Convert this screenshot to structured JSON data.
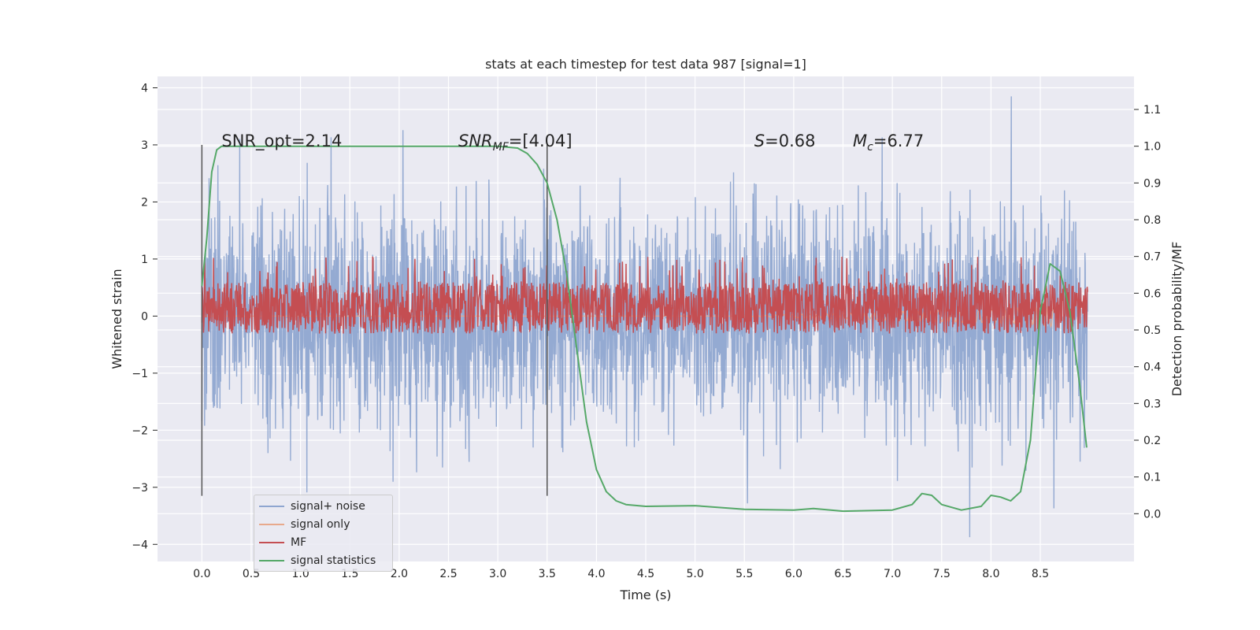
{
  "chart_data": {
    "type": "line",
    "title": "stats at each timestep for test data 987 [signal=1]",
    "xlabel": "Time (s)",
    "ylabel": "Whitened strain",
    "y2label": "Detection probability/MF",
    "xlim": [
      -0.45,
      9.45
    ],
    "ylim": [
      -4.3,
      4.2
    ],
    "y2lim": [
      -0.13,
      1.19
    ],
    "xticks": [
      "0.0",
      "0.5",
      "1.0",
      "1.5",
      "2.0",
      "2.5",
      "3.0",
      "3.5",
      "4.0",
      "4.5",
      "5.0",
      "5.5",
      "6.0",
      "6.5",
      "7.0",
      "7.5",
      "8.0",
      "8.5"
    ],
    "yticks": [
      "−4",
      "−3",
      "−2",
      "−1",
      "0",
      "1",
      "2",
      "3",
      "4"
    ],
    "y2ticks": [
      "0.0",
      "0.1",
      "0.2",
      "0.3",
      "0.4",
      "0.5",
      "0.6",
      "0.7",
      "0.8",
      "0.9",
      "1.0",
      "1.1"
    ],
    "grid": true,
    "annotations": [
      {
        "text": "SNR_opt=2.14",
        "x": 0.2,
        "y": 3.0
      },
      {
        "text": "SNR_MF=[4.04]",
        "x": 2.6,
        "y": 3.0
      },
      {
        "text": "S=0.68",
        "x": 5.6,
        "y": 3.0
      },
      {
        "text": "M_c=6.77",
        "x": 6.6,
        "y": 3.0
      }
    ],
    "vlines": [
      {
        "x": 0.0,
        "ymin": -3.15,
        "ymax": 3.0
      },
      {
        "x": 3.5,
        "ymin": -3.15,
        "ymax": 3.0
      }
    ],
    "series": [
      {
        "name": "signal+ noise",
        "axis": "left",
        "color": "#8fa6d0",
        "x_range": [
          0.0,
          8.98
        ],
        "envelope_typical": [
          -1.3,
          1.3
        ],
        "extreme_peaks": {
          "max": 3.85,
          "min": -4.0
        }
      },
      {
        "name": "signal only",
        "axis": "left",
        "color": "#e8a98c",
        "x": [
          0.0,
          5.5,
          6.0,
          6.5,
          7.0,
          7.5,
          8.0,
          8.3,
          8.5,
          8.65
        ],
        "amplitude": [
          0.0,
          0.0,
          0.03,
          0.05,
          0.08,
          0.1,
          0.12,
          0.14,
          0.16,
          0.2
        ]
      },
      {
        "name": "MF",
        "axis": "right",
        "color": "#c44e52",
        "x_range": [
          0.0,
          8.98
        ],
        "band_typical": [
          0.49,
          0.63
        ],
        "band_peaks": [
          0.49,
          0.7
        ]
      },
      {
        "name": "signal statistics",
        "axis": "right",
        "color": "#55a868",
        "x": [
          0.0,
          0.05,
          0.1,
          0.15,
          0.2,
          0.3,
          0.5,
          1.0,
          2.0,
          3.0,
          3.2,
          3.3,
          3.4,
          3.5,
          3.6,
          3.7,
          3.8,
          3.9,
          4.0,
          4.1,
          4.2,
          4.3,
          4.5,
          5.0,
          5.5,
          6.0,
          6.2,
          6.5,
          7.0,
          7.2,
          7.3,
          7.4,
          7.5,
          7.7,
          7.9,
          8.0,
          8.1,
          8.2,
          8.3,
          8.4,
          8.5,
          8.6,
          8.7,
          8.8,
          8.9,
          8.97
        ],
        "values": [
          0.62,
          0.75,
          0.93,
          0.99,
          1.0,
          1.0,
          1.0,
          1.0,
          1.0,
          1.0,
          0.995,
          0.98,
          0.95,
          0.9,
          0.8,
          0.65,
          0.45,
          0.25,
          0.12,
          0.06,
          0.035,
          0.025,
          0.02,
          0.022,
          0.012,
          0.01,
          0.014,
          0.007,
          0.01,
          0.025,
          0.055,
          0.05,
          0.025,
          0.01,
          0.02,
          0.05,
          0.045,
          0.035,
          0.06,
          0.2,
          0.55,
          0.68,
          0.66,
          0.55,
          0.35,
          0.18
        ]
      }
    ],
    "legend": {
      "placement": "lower-left",
      "entries": [
        "signal+ noise",
        "signal only",
        "MF",
        "signal statistics"
      ]
    }
  },
  "colors": {
    "plot_bg": "#eaeaf2",
    "grid": "#ffffff",
    "vline": "#555555"
  }
}
